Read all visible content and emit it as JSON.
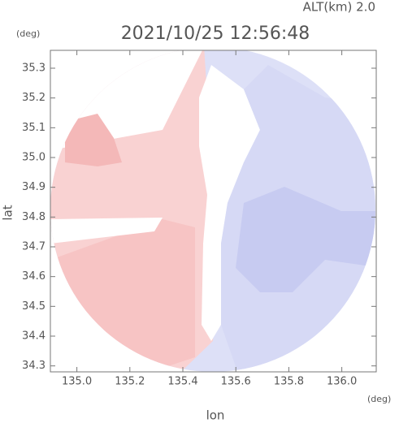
{
  "chart_data": {
    "type": "radar-map",
    "title": "2021/10/25 12:56:48",
    "subtitle": "ALT(km) 2.0",
    "x_label": "lon",
    "y_label": "lat",
    "x_unit": "(deg)",
    "y_unit": "(deg)",
    "xlim": [
      134.9,
      136.13
    ],
    "ylim": [
      34.28,
      35.36
    ],
    "xticks": [
      {
        "value": 135.0,
        "label": "135.0"
      },
      135.2,
      135.4,
      135.6,
      135.8,
      {
        "value": 136.0,
        "label": "136.0"
      }
    ],
    "yticks": [
      34.3,
      34.4,
      34.5,
      34.6,
      34.7,
      34.8,
      34.9,
      {
        "value": 35.0,
        "label": "35.0"
      },
      35.1,
      35.2,
      35.3
    ]
  }
}
